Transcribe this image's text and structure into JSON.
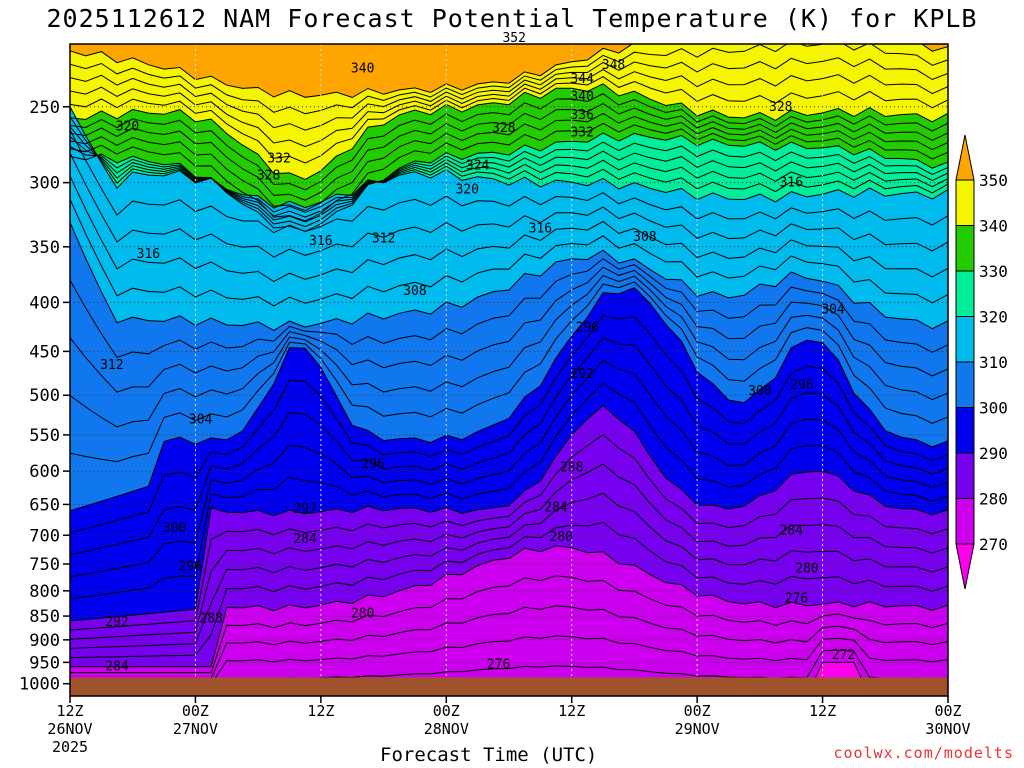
{
  "chart_data": {
    "type": "heatmap",
    "title": "2025112612 NAM Forecast Potential Temperature (K) for KPLB",
    "xlabel": "Forecast Time (UTC)",
    "ylabel": "",
    "credit": "coolwx.com/modelts",
    "y_axis": {
      "ticks": [
        250,
        300,
        350,
        400,
        450,
        500,
        550,
        600,
        650,
        700,
        750,
        800,
        850,
        900,
        950,
        1000
      ],
      "range": [
        200,
        1000
      ]
    },
    "x_axis": {
      "ticks": [
        {
          "hour": 0,
          "top": "12Z",
          "mid": "26NOV",
          "low": "2025"
        },
        {
          "hour": 12,
          "top": "00Z",
          "mid": "27NOV",
          "low": ""
        },
        {
          "hour": 24,
          "top": "12Z",
          "mid": "",
          "low": ""
        },
        {
          "hour": 36,
          "top": "00Z",
          "mid": "28NOV",
          "low": ""
        },
        {
          "hour": 48,
          "top": "12Z",
          "mid": "",
          "low": ""
        },
        {
          "hour": 60,
          "top": "00Z",
          "mid": "29NOV",
          "low": ""
        },
        {
          "hour": 72,
          "top": "12Z",
          "mid": "",
          "low": ""
        },
        {
          "hour": 84,
          "top": "00Z",
          "mid": "30NOV",
          "low": ""
        }
      ],
      "range": [
        0,
        84
      ]
    },
    "colorbar": {
      "levels": [
        350,
        340,
        330,
        320,
        310,
        300,
        290,
        280,
        270
      ],
      "colors": [
        "#ffa500",
        "#f5f500",
        "#22cc00",
        "#00ee99",
        "#00bbee",
        "#1177ee",
        "#0000ee",
        "#7700ee",
        "#cc00ee",
        "#ff00ee"
      ]
    },
    "fill_colors": {
      "ground": "#a0522d"
    },
    "contours": [
      {
        "label": "352",
        "hour": 42.5,
        "pressure": 212
      },
      {
        "label": "348",
        "hour": 52,
        "pressure": 226
      },
      {
        "label": "344",
        "hour": 49,
        "pressure": 234
      },
      {
        "label": "340",
        "hour": 28,
        "pressure": 228
      },
      {
        "label": "340",
        "hour": 49,
        "pressure": 244
      },
      {
        "label": "336",
        "hour": 49,
        "pressure": 255
      },
      {
        "label": "332",
        "hour": 49,
        "pressure": 266
      },
      {
        "label": "332",
        "hour": 20,
        "pressure": 283
      },
      {
        "label": "328",
        "hour": 19,
        "pressure": 295
      },
      {
        "label": "328",
        "hour": 41.5,
        "pressure": 263
      },
      {
        "label": "328",
        "hour": 68,
        "pressure": 250
      },
      {
        "label": "324",
        "hour": 39,
        "pressure": 288
      },
      {
        "label": "320",
        "hour": 5.5,
        "pressure": 262
      },
      {
        "label": "320",
        "hour": 38,
        "pressure": 305
      },
      {
        "label": "316",
        "hour": 7.5,
        "pressure": 356
      },
      {
        "label": "316",
        "hour": 24,
        "pressure": 345
      },
      {
        "label": "316",
        "hour": 45,
        "pressure": 335
      },
      {
        "label": "316",
        "hour": 69,
        "pressure": 300
      },
      {
        "label": "312",
        "hour": 30,
        "pressure": 343
      },
      {
        "label": "312",
        "hour": 4,
        "pressure": 465
      },
      {
        "label": "308",
        "hour": 33,
        "pressure": 389
      },
      {
        "label": "308",
        "hour": 55,
        "pressure": 342
      },
      {
        "label": "304",
        "hour": 12.5,
        "pressure": 530
      },
      {
        "label": "304",
        "hour": 73,
        "pressure": 407
      },
      {
        "label": "300",
        "hour": 10,
        "pressure": 688
      },
      {
        "label": "300",
        "hour": 66,
        "pressure": 495
      },
      {
        "label": "296",
        "hour": 11.5,
        "pressure": 755
      },
      {
        "label": "296",
        "hour": 29,
        "pressure": 590
      },
      {
        "label": "296",
        "hour": 49.5,
        "pressure": 425
      },
      {
        "label": "296",
        "hour": 70,
        "pressure": 488
      },
      {
        "label": "292",
        "hour": 4.5,
        "pressure": 862
      },
      {
        "label": "292",
        "hour": 22.5,
        "pressure": 657
      },
      {
        "label": "292",
        "hour": 49,
        "pressure": 475
      },
      {
        "label": "288",
        "hour": 13.5,
        "pressure": 855
      },
      {
        "label": "288",
        "hour": 48,
        "pressure": 595
      },
      {
        "label": "284",
        "hour": 4.5,
        "pressure": 960
      },
      {
        "label": "284",
        "hour": 22.5,
        "pressure": 706
      },
      {
        "label": "284",
        "hour": 46.5,
        "pressure": 655
      },
      {
        "label": "284",
        "hour": 69,
        "pressure": 692
      },
      {
        "label": "280",
        "hour": 28,
        "pressure": 845
      },
      {
        "label": "280",
        "hour": 47,
        "pressure": 703
      },
      {
        "label": "280",
        "hour": 70.5,
        "pressure": 758
      },
      {
        "label": "276",
        "hour": 41,
        "pressure": 955
      },
      {
        "label": "276",
        "hour": 69.5,
        "pressure": 815
      },
      {
        "label": "272",
        "hour": 74,
        "pressure": 933
      }
    ]
  }
}
